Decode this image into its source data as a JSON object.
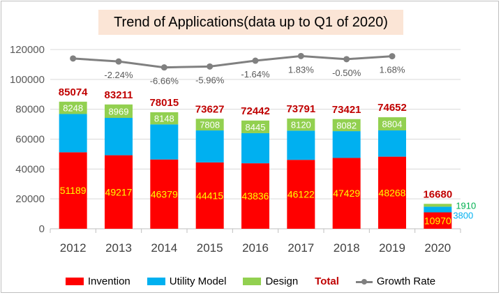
{
  "chart_data": {
    "type": "bar",
    "title": "Trend of Applications(data up to Q1  of 2020)",
    "categories": [
      "2012",
      "2013",
      "2014",
      "2015",
      "2016",
      "2017",
      "2018",
      "2019",
      "2020"
    ],
    "series": [
      {
        "name": "Invention",
        "color": "#ff0000",
        "values": [
          51189,
          49217,
          46379,
          44415,
          43836,
          46122,
          47429,
          48268,
          10970
        ]
      },
      {
        "name": "Utility Model",
        "color": "#00b0f0",
        "values": [
          25637,
          25025,
          23488,
          21404,
          20161,
          19549,
          17910,
          17580,
          3800
        ]
      },
      {
        "name": "Design",
        "color": "#92d050",
        "values": [
          8248,
          8969,
          8148,
          7808,
          8445,
          8120,
          8082,
          8804,
          1910
        ]
      }
    ],
    "totals": {
      "name": "Total",
      "color": "#c00000",
      "values": [
        85074,
        83211,
        78015,
        73627,
        72442,
        73791,
        73421,
        74652,
        16680
      ]
    },
    "growth_rate": {
      "name": "Growth Rate",
      "color": "#808080",
      "labels": [
        "",
        "-2.24%",
        "-6.66%",
        "-5.96%",
        "-1.64%",
        "1.83%",
        "-0.50%",
        "1.68%"
      ]
    },
    "value_labels": {
      "Invention": [
        "51189",
        "49217",
        "46379",
        "44415",
        "43836",
        "46122",
        "47429",
        "48268",
        "10970"
      ],
      "Design": [
        "8248",
        "8969",
        "8148",
        "7808",
        "8445",
        "8120",
        "8082",
        "8804",
        "1910"
      ],
      "Utility Model": [
        "",
        "",
        "",
        "",
        "",
        "",
        "",
        "",
        "3800"
      ]
    },
    "yticks": [
      "0",
      "20000",
      "40000",
      "60000",
      "80000",
      "100000",
      "120000"
    ],
    "ylim": [
      0,
      120000
    ],
    "grid": true,
    "legend_position": "bottom"
  }
}
